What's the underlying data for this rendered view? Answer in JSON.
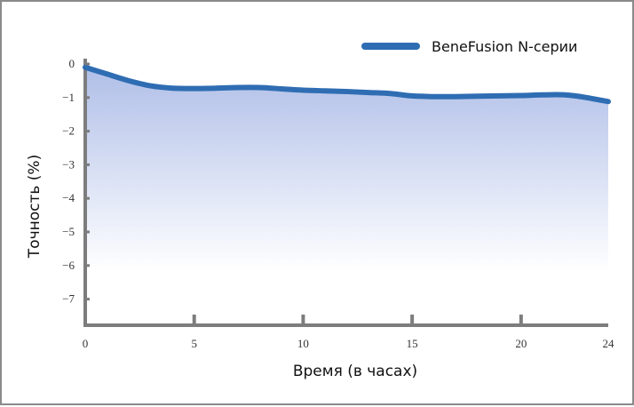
{
  "chart_data": {
    "type": "area",
    "title": "",
    "xlabel": "Время (в часах)",
    "ylabel": "Точность (%)",
    "xlim": [
      0,
      24
    ],
    "ylim": [
      -7.8,
      0
    ],
    "x_ticks": [
      0,
      5,
      10,
      15,
      20,
      24
    ],
    "x_tick_labels": [
      "0",
      "5",
      "10",
      "15",
      "20",
      "24"
    ],
    "y_ticks": [
      0,
      -1,
      -2,
      -3,
      -4,
      -5,
      -6,
      -7
    ],
    "y_tick_labels": [
      "0",
      "−1",
      "−2",
      "−3",
      "−4",
      "−5",
      "−6",
      "−7"
    ],
    "grid": false,
    "legend_position": "top-right",
    "series": [
      {
        "name": "BeneFusion N-серии",
        "color": "#2f6db3",
        "x": [
          0,
          1,
          2,
          3,
          4,
          5,
          6,
          7,
          8,
          9,
          10,
          11,
          12,
          13,
          14,
          15,
          16,
          17,
          18,
          19,
          20,
          21,
          22,
          23,
          24
        ],
        "y": [
          -0.1,
          -0.3,
          -0.5,
          -0.65,
          -0.72,
          -0.73,
          -0.72,
          -0.7,
          -0.7,
          -0.74,
          -0.78,
          -0.8,
          -0.82,
          -0.85,
          -0.88,
          -0.95,
          -0.97,
          -0.97,
          -0.96,
          -0.95,
          -0.94,
          -0.92,
          -0.92,
          -1.0,
          -1.12
        ]
      }
    ],
    "fill_gradient": [
      "#b0bfe8",
      "#ffffff"
    ]
  }
}
